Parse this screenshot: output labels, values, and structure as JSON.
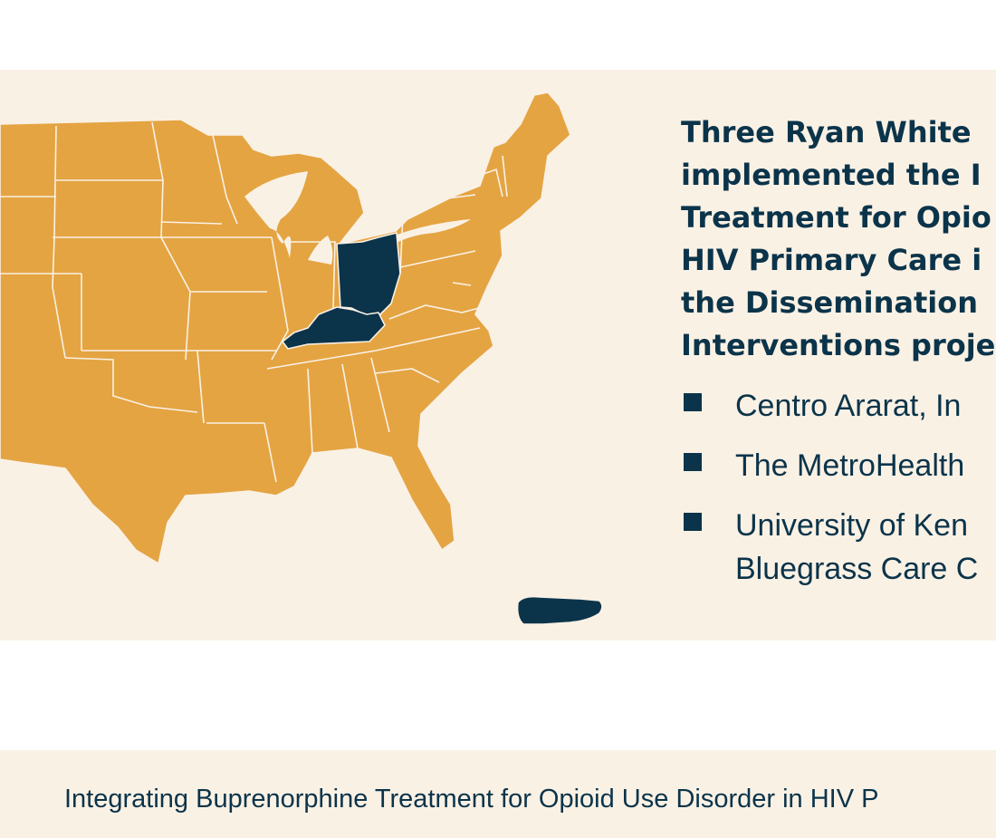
{
  "heading_lines": [
    "Three Ryan White",
    "implemented the I",
    "Treatment for Opio",
    "HIV Primary Care i",
    "the Dissemination",
    "Interventions proje"
  ],
  "sites": [
    {
      "line1": "Centro Ararat, In",
      "line2": ""
    },
    {
      "line1": "The MetroHealth",
      "line2": ""
    },
    {
      "line1": "University of Ken",
      "line2": "Bluegrass Care C"
    }
  ],
  "footer_text": "Integrating Buprenorphine Treatment for Opioid Use Disorder in HIV P",
  "map": {
    "highlighted_states": [
      "Ohio",
      "Kentucky",
      "Puerto Rico"
    ],
    "colors": {
      "base": "#e4a442",
      "highlight": "#0b344a",
      "background": "#faf1e5",
      "text": "#0b344a"
    }
  }
}
